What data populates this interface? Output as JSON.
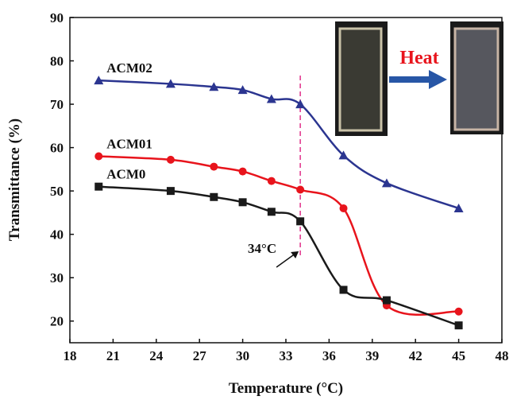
{
  "chart_data": {
    "type": "line",
    "x_label": "Temperature (°C)",
    "y_label": "Transmittance (%)",
    "x": [
      20,
      25,
      28,
      30,
      32,
      34,
      37,
      40,
      45
    ],
    "series": [
      {
        "name": "ACM02",
        "color": "#2b3590",
        "marker": "triangle",
        "values": [
          75.5,
          74.7,
          74,
          73.3,
          71.2,
          70,
          58.2,
          51.8,
          46
        ]
      },
      {
        "name": "ACM01",
        "color": "#e8141c",
        "marker": "circle",
        "values": [
          58,
          57.2,
          55.6,
          54.5,
          52.3,
          50.3,
          46,
          23.6,
          22.2
        ]
      },
      {
        "name": "ACM0",
        "color": "#1a1a1a",
        "marker": "square",
        "values": [
          51,
          50,
          48.6,
          47.4,
          45.2,
          43,
          27.2,
          24.8,
          19
        ]
      }
    ],
    "xlim": [
      18,
      48
    ],
    "xticks": [
      18,
      21,
      24,
      27,
      30,
      33,
      36,
      39,
      42,
      45,
      48
    ],
    "ylim": [
      15,
      90
    ],
    "yticks": [
      20,
      30,
      40,
      50,
      60,
      70,
      80,
      90
    ],
    "vline": 34,
    "vline_label": "34°C",
    "inset_label": "Heat"
  }
}
